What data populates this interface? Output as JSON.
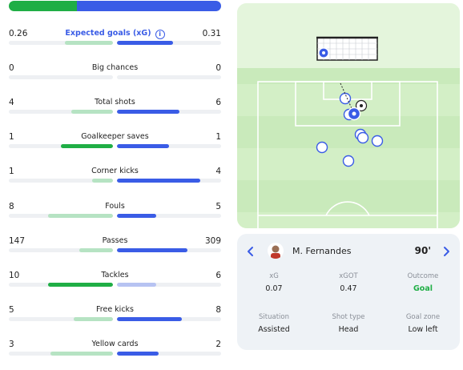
{
  "possession": {
    "home_pct": 32,
    "away_pct": 68,
    "home_color": "#1fae45",
    "away_color": "#3a5ce6"
  },
  "stats": [
    {
      "label": "Expected goals (xG)",
      "home": "0.26",
      "away": "0.31",
      "home_share": 0.46,
      "away_share": 0.54,
      "leader": "away",
      "highlight": true,
      "info_icon": "info-icon"
    },
    {
      "label": "Big chances",
      "home": "0",
      "away": "0",
      "home_share": 0,
      "away_share": 0,
      "leader": "none"
    },
    {
      "label": "Total shots",
      "home": "4",
      "away": "6",
      "home_share": 0.4,
      "away_share": 0.6,
      "leader": "away"
    },
    {
      "label": "Goalkeeper saves",
      "home": "1",
      "away": "1",
      "home_share": 0.5,
      "away_share": 0.5,
      "leader": "both"
    },
    {
      "label": "Corner kicks",
      "home": "1",
      "away": "4",
      "home_share": 0.2,
      "away_share": 0.8,
      "leader": "away"
    },
    {
      "label": "Fouls",
      "home": "8",
      "away": "5",
      "home_share": 0.62,
      "away_share": 0.38,
      "leader": "away"
    },
    {
      "label": "Passes",
      "home": "147",
      "away": "309",
      "home_share": 0.32,
      "away_share": 0.68,
      "leader": "away"
    },
    {
      "label": "Tackles",
      "home": "10",
      "away": "6",
      "home_share": 0.62,
      "away_share": 0.38,
      "leader": "home"
    },
    {
      "label": "Free kicks",
      "home": "5",
      "away": "8",
      "home_share": 0.38,
      "away_share": 0.62,
      "leader": "away"
    },
    {
      "label": "Yellow cards",
      "home": "3",
      "away": "2",
      "home_share": 0.6,
      "away_share": 0.4,
      "leader": "away"
    }
  ],
  "shot": {
    "player": "M. Fernandes",
    "minute": "90'",
    "details": [
      {
        "key": "xG",
        "value": "0.07"
      },
      {
        "key": "xGOT",
        "value": "0.47"
      },
      {
        "key": "Outcome",
        "value": "Goal",
        "is_goal": true
      },
      {
        "key": "Situation",
        "value": "Assisted"
      },
      {
        "key": "Shot type",
        "value": "Head"
      },
      {
        "key": "Goal zone",
        "value": "Low left"
      }
    ]
  },
  "icons": {
    "info": "info-icon",
    "prev": "chevron-left-icon",
    "next": "chevron-right-icon",
    "ball": "football-icon"
  }
}
